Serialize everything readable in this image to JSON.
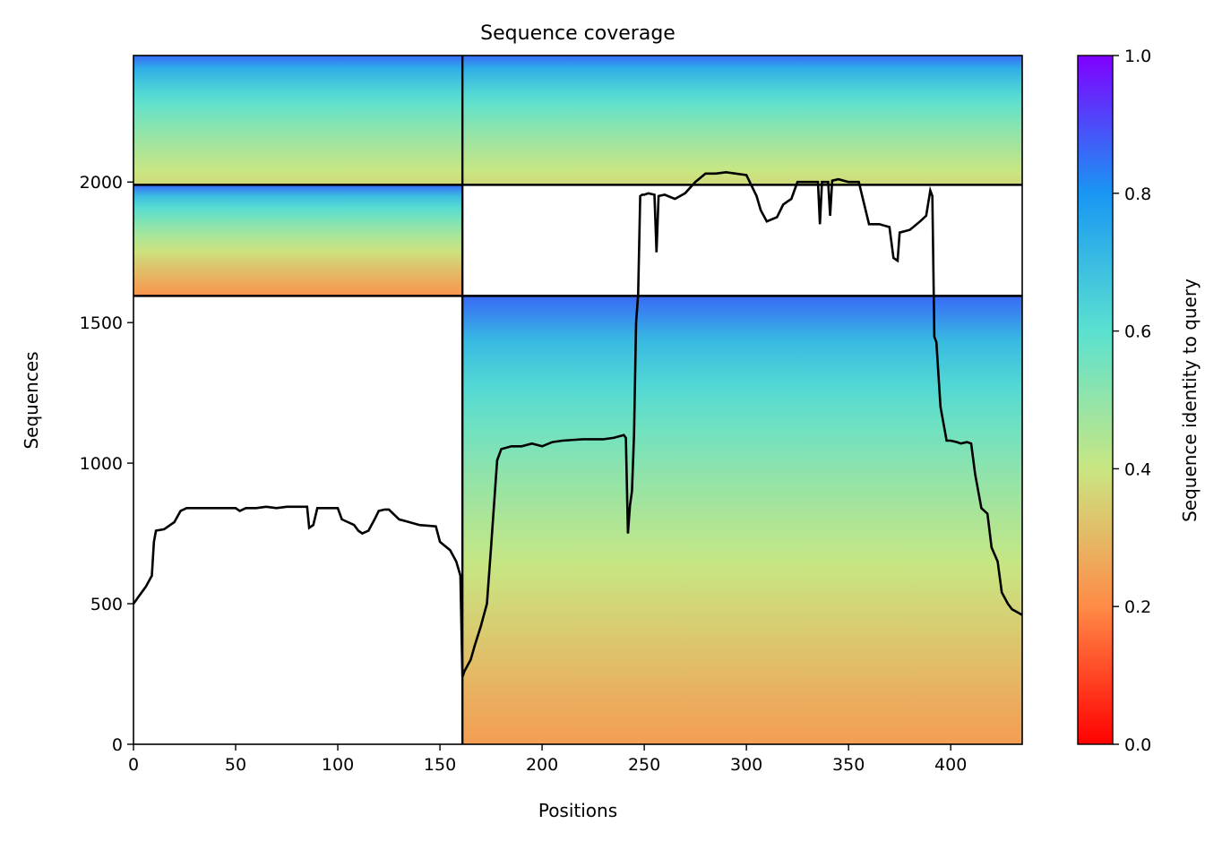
{
  "chart_data": {
    "type": "heatmap",
    "title": "Sequence coverage",
    "xlabel": "Positions",
    "ylabel": "Sequences",
    "xlim": [
      0,
      435
    ],
    "ylim": [
      0,
      2450
    ],
    "xticks": [
      0,
      50,
      100,
      150,
      200,
      250,
      300,
      350,
      400
    ],
    "yticks": [
      0,
      500,
      1000,
      1500,
      2000
    ],
    "grid": false,
    "colormap": "rainbow_r",
    "colorbar": {
      "label": "Sequence identity to query",
      "range": [
        0.0,
        1.0
      ],
      "ticks": [
        "0.0",
        "0.2",
        "0.4",
        "0.6",
        "0.8",
        "1.0"
      ],
      "colors": [
        "#ff0000",
        "#ff8b47",
        "#c9e682",
        "#5ae1d0",
        "#1996f3",
        "#8000ff"
      ]
    },
    "chain_boundaries": {
      "x": [
        161
      ],
      "y": [
        1595,
        1990
      ]
    },
    "blocks": [
      {
        "x": [
          0,
          161
        ],
        "y": [
          1990,
          2450
        ],
        "identity_top": 0.86,
        "identity_bottom": 0.37
      },
      {
        "x": [
          161,
          435
        ],
        "y": [
          1990,
          2450
        ],
        "identity_top": 0.86,
        "identity_bottom": 0.37
      },
      {
        "x": [
          0,
          161
        ],
        "y": [
          1595,
          1990
        ],
        "identity_top": 0.86,
        "identity_bottom": 0.22
      },
      {
        "x": [
          161,
          435
        ],
        "y": [
          0,
          1595
        ],
        "identity_top": 0.86,
        "identity_bottom": 0.24
      }
    ],
    "coverage_line": {
      "color": "#000000",
      "x": [
        0,
        3,
        6,
        9,
        10,
        11,
        15,
        20,
        23,
        26,
        30,
        50,
        52,
        55,
        60,
        65,
        70,
        75,
        85,
        86,
        88,
        90,
        95,
        100,
        102,
        105,
        108,
        110,
        112,
        115,
        118,
        120,
        123,
        125,
        130,
        135,
        140,
        148,
        150,
        155,
        158,
        160,
        161,
        162,
        165,
        167,
        170,
        173,
        175,
        178,
        180,
        185,
        190,
        195,
        200,
        205,
        210,
        220,
        230,
        235,
        240,
        241,
        242,
        243,
        244,
        245,
        246,
        247,
        248,
        249,
        250,
        252,
        255,
        256,
        257,
        260,
        265,
        270,
        275,
        280,
        285,
        290,
        300,
        305,
        307,
        310,
        315,
        318,
        320,
        322,
        325,
        330,
        335,
        336,
        337,
        340,
        341,
        342,
        345,
        350,
        355,
        360,
        365,
        370,
        372,
        374,
        375,
        380,
        385,
        388,
        390,
        391,
        392,
        393,
        395,
        398,
        400,
        403,
        405,
        408,
        410,
        412,
        415,
        418,
        420,
        423,
        425,
        428,
        430,
        435
      ],
      "y": [
        500,
        530,
        560,
        600,
        720,
        760,
        765,
        790,
        830,
        840,
        840,
        840,
        830,
        840,
        840,
        845,
        840,
        845,
        845,
        770,
        780,
        840,
        840,
        840,
        800,
        790,
        780,
        760,
        750,
        760,
        800,
        830,
        835,
        835,
        800,
        790,
        780,
        775,
        720,
        690,
        650,
        600,
        240,
        260,
        300,
        350,
        420,
        500,
        700,
        1010,
        1050,
        1060,
        1060,
        1070,
        1060,
        1075,
        1080,
        1085,
        1085,
        1090,
        1100,
        1090,
        750,
        850,
        900,
        1100,
        1500,
        1600,
        1950,
        1955,
        1955,
        1960,
        1955,
        1750,
        1950,
        1955,
        1940,
        1960,
        2000,
        2030,
        2030,
        2035,
        2025,
        1950,
        1900,
        1860,
        1875,
        1920,
        1930,
        1940,
        2000,
        2000,
        2000,
        1850,
        2000,
        2000,
        1880,
        2005,
        2010,
        2000,
        2000,
        1850,
        1850,
        1840,
        1730,
        1720,
        1820,
        1830,
        1860,
        1880,
        1970,
        1950,
        1450,
        1430,
        1200,
        1080,
        1080,
        1075,
        1070,
        1075,
        1070,
        960,
        840,
        820,
        700,
        650,
        540,
        500,
        480,
        460
      ]
    }
  }
}
